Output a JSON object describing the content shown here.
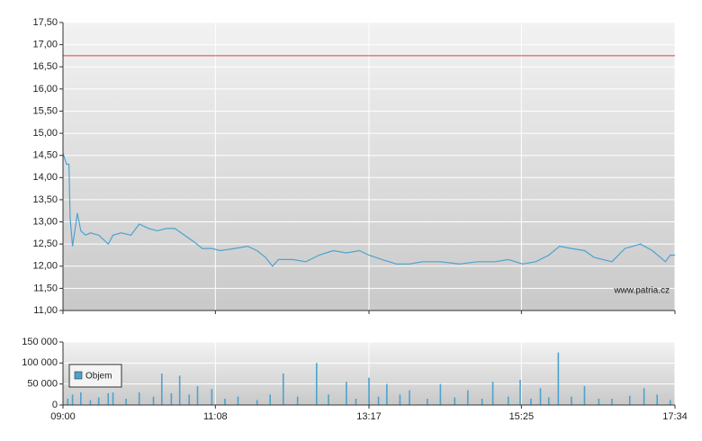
{
  "chart_data": [
    {
      "type": "line",
      "x": [
        540,
        543,
        545,
        546,
        548,
        551,
        552,
        555,
        559,
        563,
        570,
        578,
        582,
        589,
        597,
        604,
        612,
        619,
        627,
        634,
        642,
        650,
        657,
        665,
        672,
        684,
        695,
        703,
        710,
        716,
        721,
        733,
        744,
        755,
        767,
        778,
        789,
        797,
        808,
        820,
        831,
        842,
        857,
        873,
        888,
        903,
        914,
        926,
        937,
        948,
        957,
        967,
        978,
        986,
        1001,
        1012,
        1025,
        1035,
        1046,
        1050,
        1054
      ],
      "values": [
        14.55,
        14.3,
        14.3,
        13.1,
        12.45,
        13.0,
        13.2,
        12.8,
        12.7,
        12.75,
        12.7,
        12.5,
        12.7,
        12.75,
        12.7,
        12.95,
        12.85,
        12.8,
        12.85,
        12.85,
        12.7,
        12.55,
        12.4,
        12.4,
        12.35,
        12.4,
        12.45,
        12.35,
        12.2,
        12.0,
        12.15,
        12.15,
        12.1,
        12.25,
        12.35,
        12.3,
        12.35,
        12.25,
        12.15,
        12.05,
        12.05,
        12.1,
        12.1,
        12.05,
        12.1,
        12.1,
        12.15,
        12.05,
        12.1,
        12.25,
        12.45,
        12.4,
        12.35,
        12.2,
        12.1,
        12.4,
        12.5,
        12.35,
        12.1,
        12.25,
        12.25
      ],
      "color": "#4ba3cf",
      "xlim": [
        540,
        1054
      ],
      "ylim": [
        11,
        17.5
      ],
      "yticks": [
        {
          "value": 11,
          "label": "11,00"
        },
        {
          "value": 11.5,
          "label": "11,50"
        },
        {
          "value": 12,
          "label": "12,00"
        },
        {
          "value": 12.5,
          "label": "12,50"
        },
        {
          "value": 13,
          "label": "13,00"
        },
        {
          "value": 13.5,
          "label": "13,50"
        },
        {
          "value": 14,
          "label": "14,00"
        },
        {
          "value": 14.5,
          "label": "14,50"
        },
        {
          "value": 15,
          "label": "15,00"
        },
        {
          "value": 15.5,
          "label": "15,50"
        },
        {
          "value": 16,
          "label": "16,00"
        },
        {
          "value": 16.5,
          "label": "16,50"
        },
        {
          "value": 17,
          "label": "17,00"
        },
        {
          "value": 17.5,
          "label": "17,50"
        }
      ],
      "reference_line": {
        "value": 16.75,
        "color": "#e04040"
      },
      "annotation": "www.patria.cz",
      "grid": true
    },
    {
      "type": "bar",
      "x": [
        544,
        548,
        555,
        563,
        570,
        578,
        582,
        593,
        604,
        616,
        623,
        631,
        638,
        646,
        653,
        665,
        676,
        687,
        703,
        714,
        725,
        737,
        753,
        763,
        778,
        786,
        797,
        805,
        812,
        823,
        831,
        846,
        857,
        869,
        880,
        892,
        901,
        914,
        924,
        933,
        941,
        948,
        956,
        967,
        978,
        990,
        1001,
        1016,
        1028,
        1039,
        1050
      ],
      "series": [
        {
          "name": "Objem",
          "color": "#4ba3cf",
          "values": [
            15000,
            25000,
            30000,
            12000,
            18000,
            28000,
            30000,
            15000,
            30000,
            20000,
            75000,
            28000,
            70000,
            25000,
            45000,
            38000,
            15000,
            20000,
            12000,
            25000,
            75000,
            20000,
            100000,
            25000,
            55000,
            15000,
            65000,
            20000,
            50000,
            25000,
            35000,
            15000,
            50000,
            18000,
            35000,
            15000,
            55000,
            20000,
            60000,
            15000,
            40000,
            18000,
            125000,
            20000,
            45000,
            15000,
            15000,
            22000,
            40000,
            25000,
            12000
          ]
        }
      ],
      "xlim": [
        540,
        1054
      ],
      "xticks": [
        {
          "value": 540,
          "label": "09:00"
        },
        {
          "value": 668,
          "label": "11:08"
        },
        {
          "value": 797,
          "label": "13:17"
        },
        {
          "value": 925,
          "label": "15:25"
        },
        {
          "value": 1054,
          "label": "17:34"
        }
      ],
      "ylim": [
        0,
        150000
      ],
      "yticks": [
        0,
        {
          "value": 50000,
          "label": "50 000"
        },
        {
          "value": 100000,
          "label": "100 000"
        },
        {
          "value": 150000,
          "label": "150 000"
        }
      ],
      "legend": "top-left",
      "grid": true
    }
  ]
}
